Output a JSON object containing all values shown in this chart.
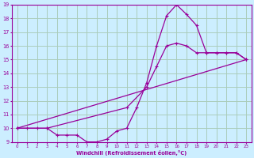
{
  "xlabel": "Windchill (Refroidissement éolien,°C)",
  "color": "#990099",
  "bg_color": "#cceeff",
  "grid_color": "#aaccbb",
  "xlim": [
    -0.5,
    23.5
  ],
  "ylim": [
    9,
    19
  ],
  "yticks": [
    9,
    10,
    11,
    12,
    13,
    14,
    15,
    16,
    17,
    18,
    19
  ],
  "xticks": [
    0,
    1,
    2,
    3,
    4,
    5,
    6,
    7,
    8,
    9,
    10,
    11,
    12,
    13,
    14,
    15,
    16,
    17,
    18,
    19,
    20,
    21,
    22,
    23
  ],
  "line1_x": [
    0,
    1,
    2,
    3,
    4,
    5,
    6,
    7,
    8,
    9,
    10,
    11,
    12,
    13,
    14,
    15,
    16,
    17,
    18,
    19,
    20,
    21,
    22,
    23
  ],
  "line1_y": [
    10,
    10,
    10,
    10,
    9.5,
    9.5,
    9.5,
    9.0,
    9.0,
    9.2,
    9.8,
    10.0,
    11.5,
    13.3,
    16.0,
    18.2,
    19.0,
    18.3,
    17.5,
    15.5,
    15.5,
    15.5,
    15.5,
    15.0
  ],
  "line2_x": [
    0,
    3,
    11,
    13,
    14,
    15,
    16,
    17,
    18,
    19,
    20,
    21,
    22,
    23
  ],
  "line2_y": [
    10,
    10,
    11.5,
    13.0,
    14.5,
    16.0,
    16.2,
    16.0,
    15.5,
    15.5,
    15.5,
    15.5,
    15.5,
    15.0
  ],
  "line3_x": [
    0,
    23
  ],
  "line3_y": [
    10,
    15.0
  ]
}
